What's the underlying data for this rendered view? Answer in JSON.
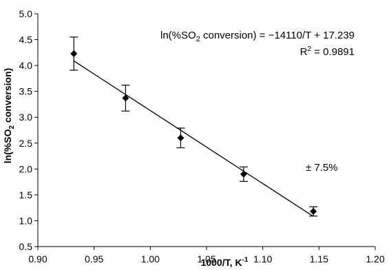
{
  "chart_data": {
    "type": "scatter",
    "xlabel": "1000/T, K",
    "xlabel_sup": "-1",
    "ylabel_prefix": "ln(%SO",
    "ylabel_sub": "2",
    "ylabel_suffix": " conversion)",
    "xlim": [
      0.9,
      1.2
    ],
    "ylim": [
      0.5,
      5.0
    ],
    "x_ticks": [
      "0.90",
      "0.95",
      "1.00",
      "1.05",
      "1.10",
      "1.15",
      "1.20"
    ],
    "y_ticks": [
      "0.5",
      "1.0",
      "1.5",
      "2.0",
      "2.5",
      "3.0",
      "3.5",
      "4.0",
      "4.5",
      "5.0"
    ],
    "grid": false,
    "series": [
      {
        "marker": "diamond",
        "points": [
          {
            "x": 0.932,
            "y": 4.23,
            "err": 0.32
          },
          {
            "x": 0.978,
            "y": 3.37,
            "err": 0.25
          },
          {
            "x": 1.027,
            "y": 2.6,
            "err": 0.19
          },
          {
            "x": 1.083,
            "y": 1.9,
            "err": 0.14
          },
          {
            "x": 1.145,
            "y": 1.18,
            "err": 0.09
          }
        ]
      }
    ],
    "trendline": {
      "slope": -14.11,
      "intercept": 17.239,
      "x_range": [
        0.932,
        1.145
      ]
    },
    "equation": {
      "prefix": "ln(%SO",
      "sub": "2",
      "suffix": " conversion) = −14110/T + 17.239"
    },
    "r_squared": {
      "prefix": "R",
      "sup": "2",
      "suffix": " = 0.9891"
    },
    "error_note": "± 7.5%"
  }
}
